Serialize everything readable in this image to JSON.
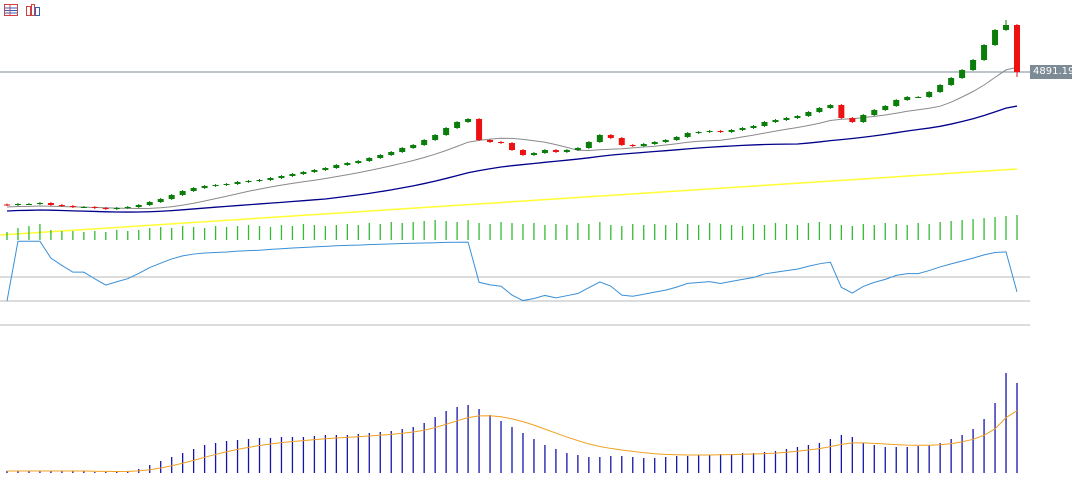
{
  "toolbar": {
    "icons": [
      "list-icon",
      "template-icon"
    ]
  },
  "price_label": "4891.19",
  "colors": {
    "bull": "#0a7d0a",
    "bear": "#ee1111",
    "ma_fast": "#8a8a8a",
    "ma_slow": "#00008b",
    "ma_long": "#ffff33",
    "volume": "#33bb33",
    "rsi": "#3a8fd6",
    "hist": "#1515aa",
    "signal": "#f0a020",
    "level": "#b8b8b8"
  },
  "chart_data": {
    "type": "candlestick",
    "current_price": 4891.19,
    "ylim": [
      4319,
      5179
    ],
    "closes": [
      4359,
      4363,
      4363,
      4367,
      4359,
      4355,
      4351,
      4351,
      4347,
      4343,
      4347,
      4351,
      4359,
      4371,
      4383,
      4399,
      4415,
      4427,
      4435,
      4439,
      4443,
      4451,
      4455,
      4459,
      4467,
      4475,
      4483,
      4491,
      4499,
      4507,
      4519,
      4527,
      4535,
      4547,
      4559,
      4571,
      4587,
      4599,
      4619,
      4639,
      4667,
      4691,
      4703,
      4619,
      4611,
      4607,
      4579,
      4559,
      4567,
      4579,
      4571,
      4579,
      4587,
      4611,
      4639,
      4627,
      4599,
      4595,
      4603,
      4611,
      4619,
      4631,
      4647,
      4651,
      4655,
      4651,
      4659,
      4667,
      4675,
      4691,
      4699,
      4707,
      4715,
      4731,
      4747,
      4759,
      4707,
      4691,
      4719,
      4739,
      4755,
      4779,
      4791,
      4791,
      4811,
      4839,
      4867,
      4899,
      4939,
      4999,
      5059,
      5079,
      4891.19
    ],
    "ma_long": {
      "start": 4239,
      "end": 4503
    },
    "volume": [
      8,
      12,
      14,
      16,
      10,
      9,
      9,
      8,
      9,
      8,
      10,
      9,
      10,
      12,
      13,
      12,
      14,
      13,
      12,
      14,
      13,
      14,
      15,
      14,
      13,
      15,
      14,
      16,
      15,
      14,
      15,
      16,
      15,
      17,
      16,
      18,
      17,
      18,
      19,
      20,
      19,
      18,
      20,
      17,
      16,
      18,
      17,
      16,
      17,
      15,
      16,
      15,
      17,
      16,
      18,
      15,
      14,
      16,
      15,
      16,
      15,
      17,
      16,
      15,
      17,
      16,
      15,
      14,
      16,
      15,
      17,
      16,
      15,
      17,
      18,
      16,
      15,
      14,
      16,
      15,
      17,
      16,
      15,
      17,
      16,
      18,
      19,
      20,
      21,
      22,
      23,
      24,
      25
    ],
    "rsi_levels": [
      70,
      50,
      30
    ],
    "histogram": [
      2,
      2,
      2,
      2,
      2,
      2,
      2,
      2,
      1,
      1,
      1,
      2,
      4,
      8,
      12,
      16,
      20,
      24,
      28,
      30,
      32,
      33,
      34,
      35,
      35,
      36,
      36,
      36,
      37,
      38,
      38,
      38,
      39,
      40,
      41,
      42,
      44,
      46,
      50,
      56,
      62,
      66,
      68,
      64,
      58,
      52,
      46,
      40,
      34,
      28,
      24,
      20,
      18,
      16,
      16,
      17,
      17,
      16,
      15,
      15,
      16,
      17,
      17,
      18,
      18,
      19,
      19,
      20,
      20,
      21,
      22,
      24,
      26,
      28,
      30,
      34,
      38,
      36,
      30,
      28,
      26,
      26,
      26,
      27,
      28,
      30,
      34,
      38,
      44,
      54,
      70,
      100,
      90
    ]
  }
}
